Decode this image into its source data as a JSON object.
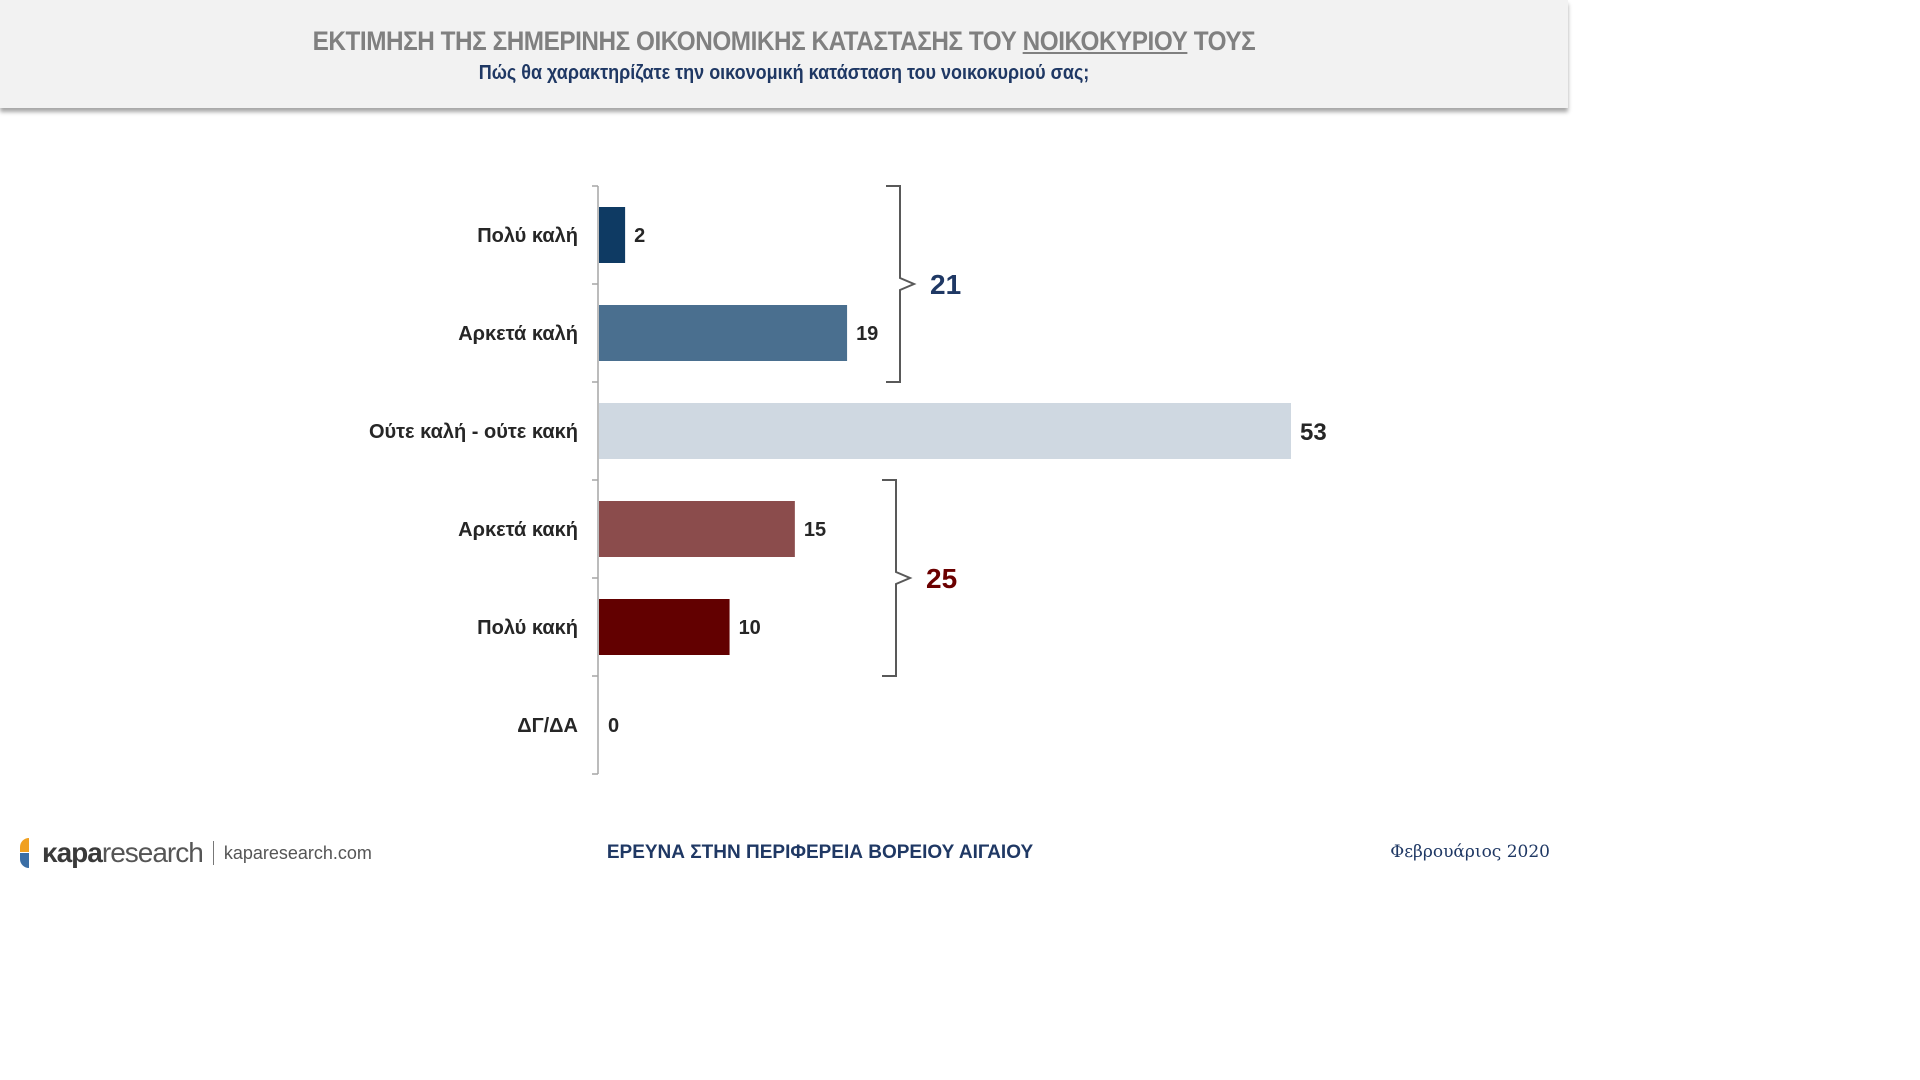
{
  "header": {
    "title_part1": "ΕΚΤΙΜΗΣΗ ΤΗΣ ΣΗΜΕΡΙΝΗΣ ΟΙΚΟΝΟΜΙΚΗΣ ΚΑΤΑΣΤΑΣΗΣ ΤΟΥ ",
    "title_underlined": "ΝΟΙΚΟΚΥΡΙΟΥ",
    "title_part2": " ΤΟΥΣ",
    "subtitle": "Πώς θα χαρακτηρίζατε την οικονομική κατάσταση του νοικοκυριού σας;"
  },
  "chart_data": {
    "type": "bar",
    "orientation": "horizontal",
    "categories": [
      "Πολύ καλή",
      "Αρκετά καλή",
      "Ούτε καλή - ούτε κακή",
      "Αρκετά κακή",
      "Πολύ κακή",
      "ΔΓ/ΔΑ"
    ],
    "values": [
      2,
      19,
      53,
      15,
      10,
      0
    ],
    "colors": [
      "#0e3a63",
      "#4a6f8f",
      "#cfd8e1",
      "#8b4c4c",
      "#620000",
      "#cccccc"
    ],
    "xlim": [
      0,
      53
    ],
    "grid": false,
    "groups": [
      {
        "label": "21",
        "from": 0,
        "to": 1,
        "color": "#1f3864"
      },
      {
        "label": "25",
        "from": 3,
        "to": 4,
        "color": "#6b0000"
      }
    ]
  },
  "footer": {
    "logo_bold": "κapa",
    "logo_light": "research",
    "logo_url": "kaparesearch.com",
    "center": "ΕΡΕΥΝΑ ΣΤΗΝ ΠΕΡΙΦΕΡΕΙΑ ΒΟΡΕΙΟΥ ΑΙΓΑΙΟΥ",
    "date": "Φεβρουάριος 2020"
  }
}
